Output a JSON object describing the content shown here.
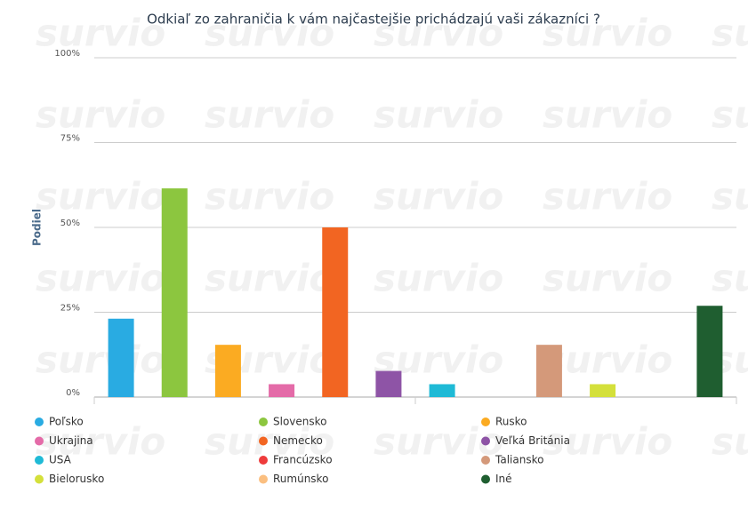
{
  "chart_data": {
    "type": "bar",
    "title": "Odkiaľ zo zahraničia k vám najčastejšie prichádzajú vaši zákazníci ?",
    "y_label": "Podiel",
    "watermark": "survio",
    "series": [
      {
        "name": "Poľsko",
        "color": "#29abe2",
        "values": [
          23.1
        ]
      },
      {
        "name": "Slovensko",
        "color": "#8cc63f",
        "values": [
          61.5
        ]
      },
      {
        "name": "Rusko",
        "color": "#fbab22",
        "values": [
          15.4
        ]
      },
      {
        "name": "Ukrajina",
        "color": "#e46ba8",
        "values": [
          3.8
        ]
      },
      {
        "name": "Nemecko",
        "color": "#f26522",
        "values": [
          50
        ]
      },
      {
        "name": "Veľká Británia",
        "color": "#8e54a6",
        "values": [
          7.7
        ]
      },
      {
        "name": "USA",
        "color": "#1fbad6",
        "values": [
          3.8
        ]
      },
      {
        "name": "Francúzsko",
        "color": "#ee3b3b",
        "values": [
          0
        ]
      },
      {
        "name": "Taliansko",
        "color": "#d4997a",
        "values": [
          15.4
        ]
      },
      {
        "name": "Bielorusko",
        "color": "#d4e03b",
        "values": [
          3.8
        ]
      },
      {
        "name": "Rumúnsko",
        "color": "#fbbf80",
        "values": [
          0
        ]
      },
      {
        "name": "Iné",
        "color": "#1f5e30",
        "values": [
          26.9
        ]
      }
    ],
    "ylim": [
      0,
      100
    ],
    "yticks": [
      {
        "value": 0,
        "label": "0%"
      },
      {
        "value": 25,
        "label": "25%"
      },
      {
        "value": 50,
        "label": "50%"
      },
      {
        "value": 75,
        "label": "75%"
      },
      {
        "value": 100,
        "label": "100%"
      }
    ],
    "grid": true,
    "legend": "bottom"
  }
}
